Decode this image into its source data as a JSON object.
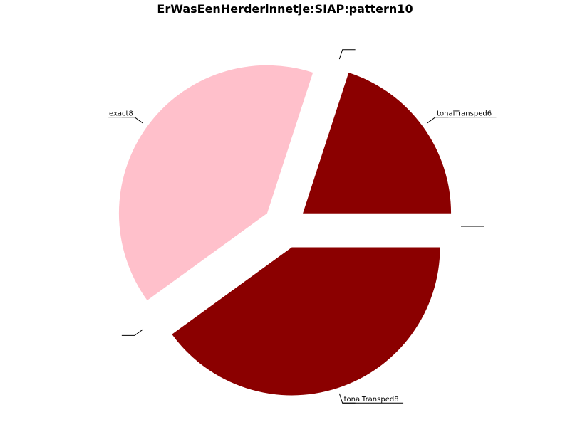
{
  "chart_data": {
    "type": "pie",
    "title": "ErWasEenHerderinnetje:SIAP:pattern10",
    "slices": [
      {
        "label": "",
        "value": 0,
        "color": "#8b0000"
      },
      {
        "label": "tonalTransped6",
        "value": 20,
        "color": "#8b0000"
      },
      {
        "label": "",
        "value": 0,
        "color": "#8b0000"
      },
      {
        "label": "exact8",
        "value": 40,
        "color": "#ffc0cb"
      },
      {
        "label": "",
        "value": 0,
        "color": "#8b0000"
      },
      {
        "label": "tonalTransped8",
        "value": 40,
        "color": "#8b0000"
      }
    ],
    "start_angle_deg": 0,
    "direction": "counterclockwise",
    "exploded": true
  }
}
